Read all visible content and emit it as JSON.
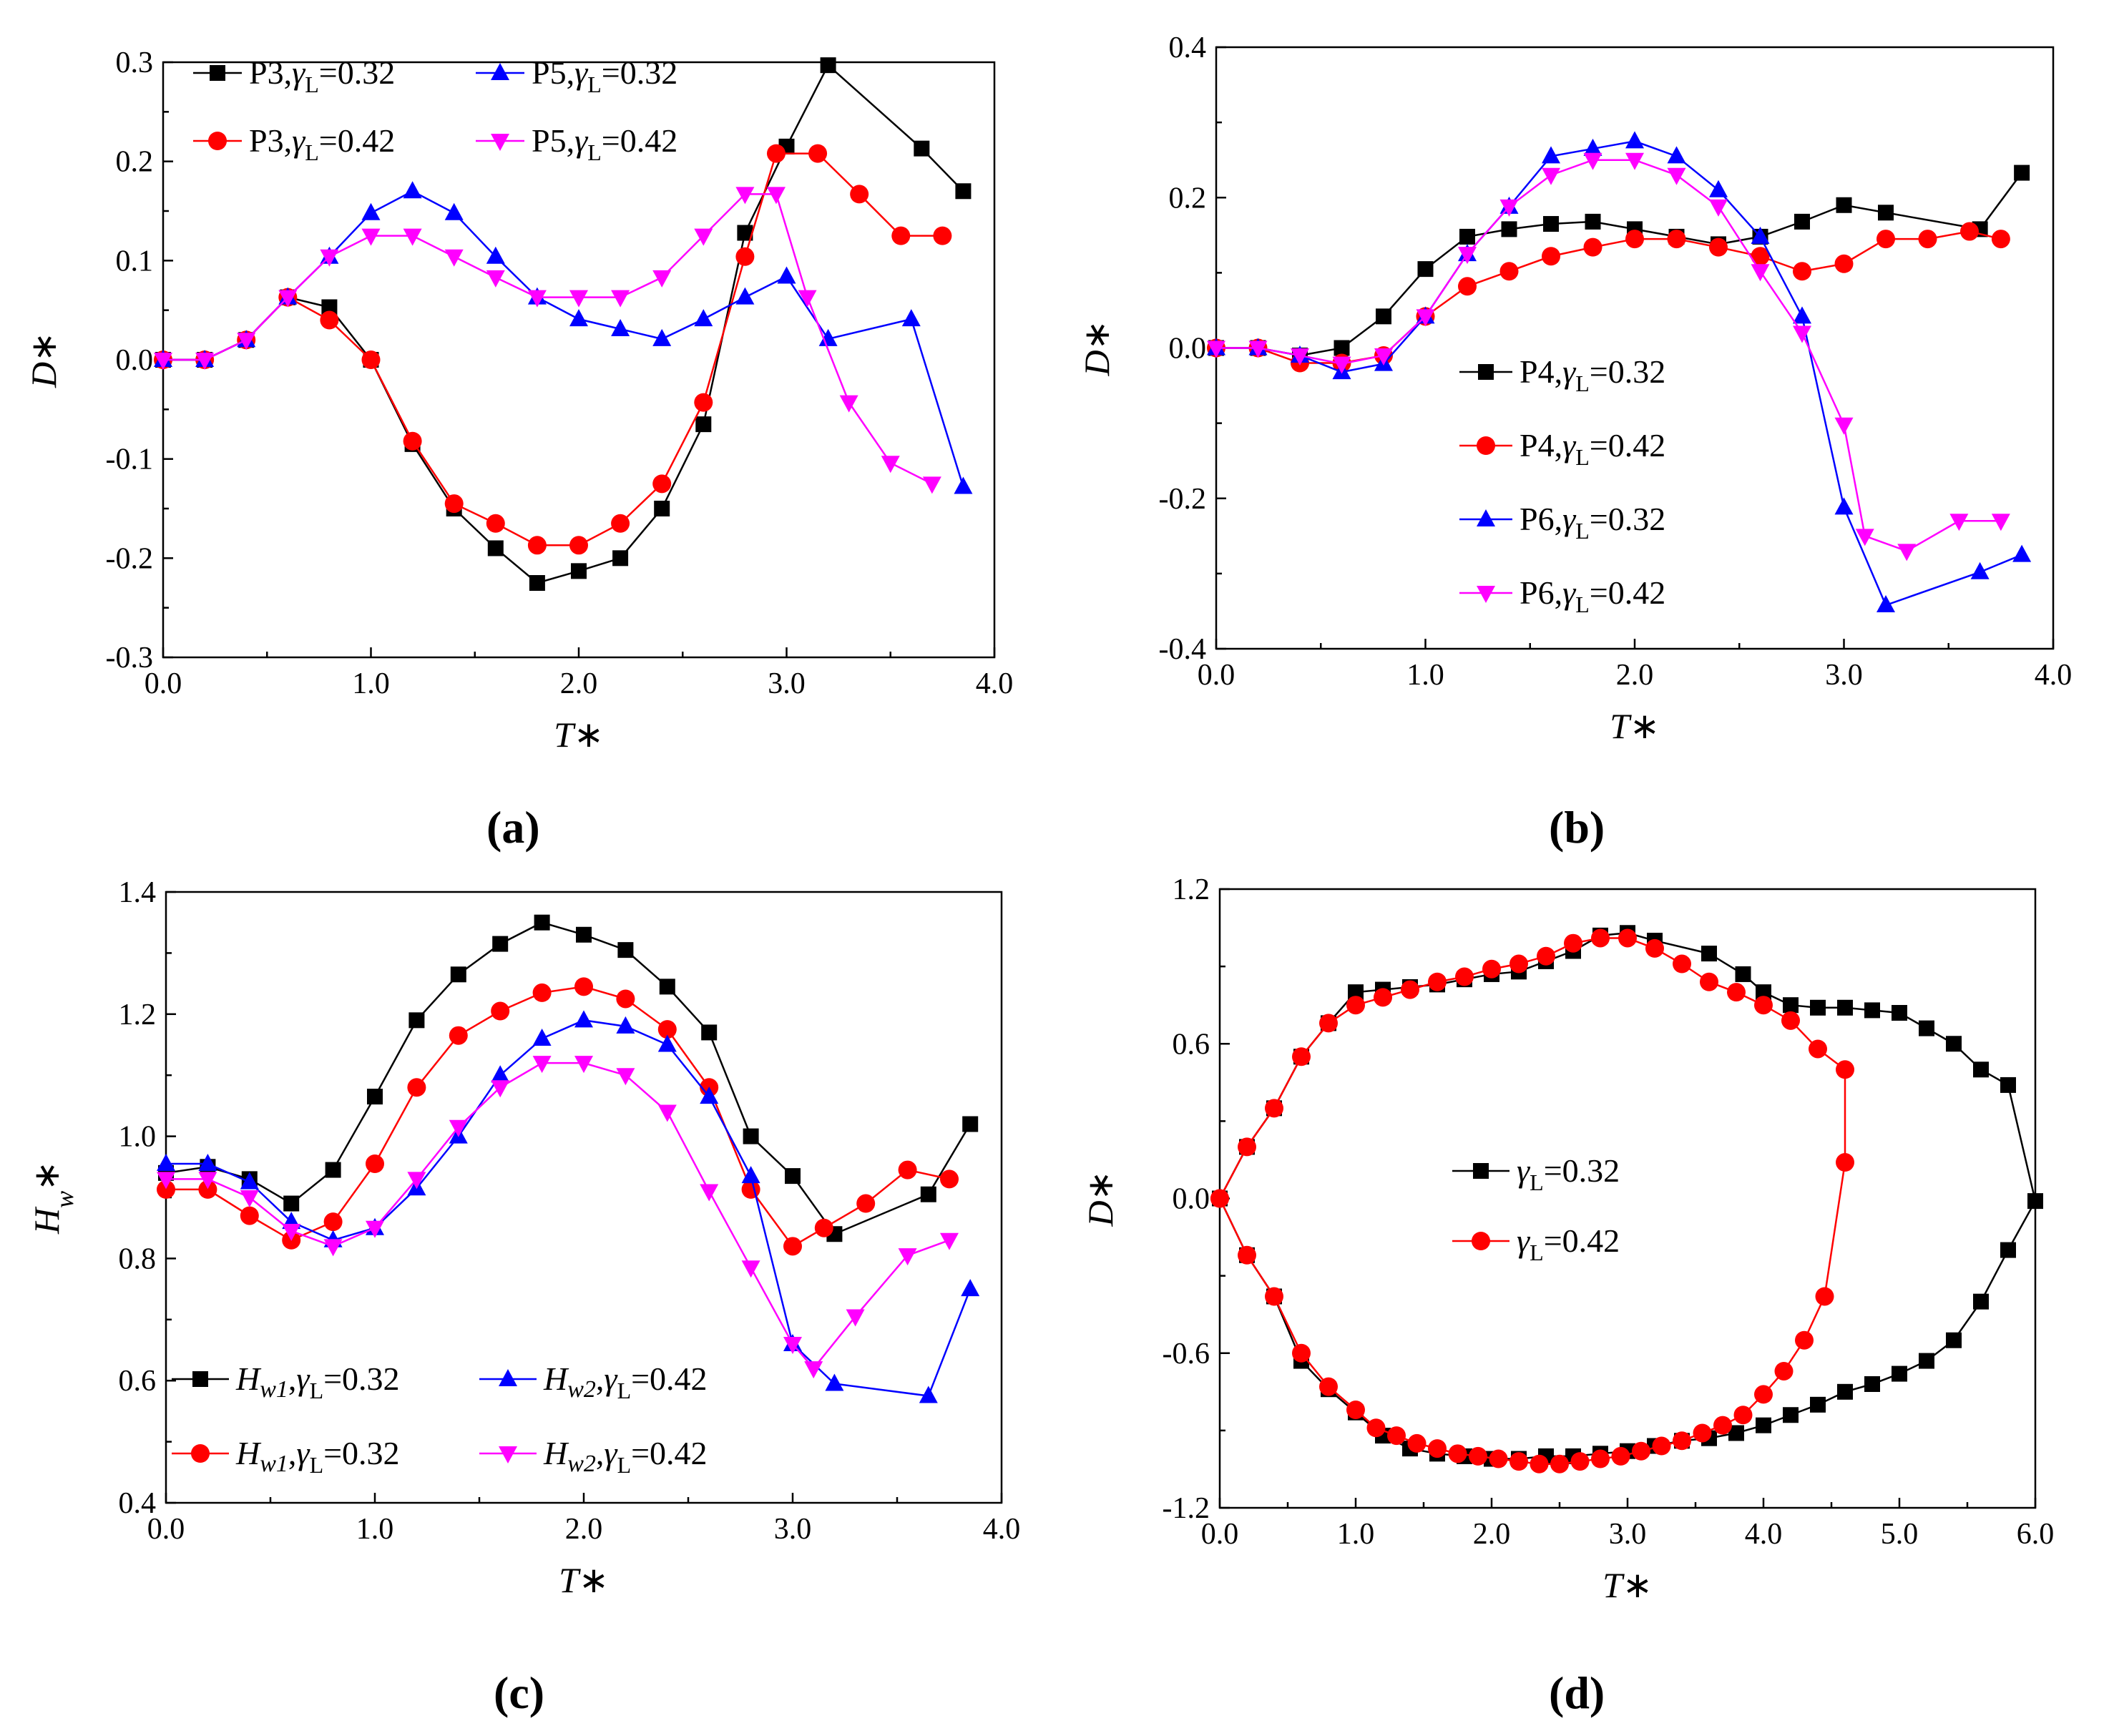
{
  "figure": {
    "panel_labels": [
      "(a)",
      "(b)",
      "(c)",
      "(d)"
    ]
  },
  "chart_data": [
    {
      "id": "a",
      "type": "line",
      "xlabel": "T*",
      "ylabel": "D*",
      "xlim": [
        0,
        4.0
      ],
      "ylim": [
        -0.3,
        0.3
      ],
      "xticks": [
        0,
        1,
        2,
        3,
        4
      ],
      "xtick_labels": [
        "0.0",
        "1.0",
        "2.0",
        "3.0",
        "4.0"
      ],
      "yticks": [
        -0.3,
        -0.2,
        -0.1,
        0,
        0.1,
        0.2,
        0.3
      ],
      "ytick_labels": [
        "-0.3",
        "-0.2",
        "-0.1",
        "0.0",
        "0.1",
        "0.2",
        "0.3"
      ],
      "legend_position": "top",
      "series": [
        {
          "name": "P3,γL=0.32",
          "label_main": "P3,",
          "gamma": "γ",
          "sub": "L",
          "val": "=0.32",
          "color": "#000000",
          "marker": "square",
          "x": [
            0,
            0.2,
            0.4,
            0.6,
            0.8,
            1.0,
            1.2,
            1.4,
            1.6,
            1.8,
            2.0,
            2.2,
            2.4,
            2.6,
            2.8,
            3.0,
            3.2,
            3.65,
            3.85
          ],
          "y": [
            0,
            0,
            0.02,
            0.063,
            0.053,
            0,
            -0.085,
            -0.15,
            -0.19,
            -0.225,
            -0.213,
            -0.2,
            -0.15,
            -0.065,
            0.128,
            0.215,
            0.297,
            0.213,
            0.17
          ]
        },
        {
          "name": "P3,γL=0.42",
          "label_main": "P3,",
          "gamma": "γ",
          "sub": "L",
          "val": "=0.42",
          "color": "#ff0000",
          "marker": "circle",
          "x": [
            0,
            0.2,
            0.4,
            0.6,
            0.8,
            1.0,
            1.2,
            1.4,
            1.6,
            1.8,
            2.0,
            2.2,
            2.4,
            2.6,
            2.8,
            2.95,
            3.15,
            3.35,
            3.55,
            3.75
          ],
          "y": [
            0,
            0,
            0.02,
            0.063,
            0.04,
            0,
            -0.082,
            -0.145,
            -0.165,
            -0.187,
            -0.187,
            -0.165,
            -0.125,
            -0.043,
            0.104,
            0.208,
            0.208,
            0.167,
            0.125,
            0.125
          ]
        },
        {
          "name": "P5,γL=0.32",
          "label_main": "P5,",
          "gamma": "γ",
          "sub": "L",
          "val": "=0.32",
          "color": "#0000ff",
          "marker": "triangle",
          "x": [
            0,
            0.2,
            0.4,
            0.6,
            0.8,
            1.0,
            1.2,
            1.4,
            1.6,
            1.8,
            2.0,
            2.2,
            2.4,
            2.6,
            2.8,
            3.0,
            3.2,
            3.6,
            3.85
          ],
          "y": [
            0,
            0,
            0.02,
            0.063,
            0.104,
            0.148,
            0.17,
            0.148,
            0.104,
            0.063,
            0.041,
            0.031,
            0.021,
            0.041,
            0.063,
            0.084,
            0.021,
            0.041,
            -0.128
          ]
        },
        {
          "name": "P5,γL=0.42",
          "label_main": "P5,",
          "gamma": "γ",
          "sub": "L",
          "val": "=0.42",
          "color": "#ff00ff",
          "marker": "triangle-down",
          "x": [
            0,
            0.2,
            0.4,
            0.6,
            0.8,
            1.0,
            1.2,
            1.4,
            1.6,
            1.8,
            2.0,
            2.2,
            2.4,
            2.6,
            2.8,
            2.95,
            3.1,
            3.3,
            3.5,
            3.7
          ],
          "y": [
            0,
            0,
            0.02,
            0.063,
            0.104,
            0.125,
            0.125,
            0.104,
            0.083,
            0.063,
            0.063,
            0.063,
            0.083,
            0.125,
            0.167,
            0.167,
            0.063,
            -0.043,
            -0.104,
            -0.125
          ]
        }
      ]
    },
    {
      "id": "b",
      "type": "line",
      "xlabel": "T*",
      "ylabel": "D*",
      "xlim": [
        0,
        4.0
      ],
      "ylim": [
        -0.4,
        0.4
      ],
      "xticks": [
        0,
        1,
        2,
        3,
        4
      ],
      "xtick_labels": [
        "0.0",
        "1.0",
        "2.0",
        "3.0",
        "4.0"
      ],
      "yticks": [
        -0.4,
        -0.2,
        0,
        0.2,
        0.4
      ],
      "ytick_labels": [
        "-0.4",
        "-0.2",
        "0.0",
        "0.2",
        "0.4"
      ],
      "legend_position": "center-right",
      "series": [
        {
          "name": "P4,γL=0.32",
          "label_main": "P4,",
          "gamma": "γ",
          "sub": "L",
          "val": "=0.32",
          "color": "#000000",
          "marker": "square",
          "x": [
            0,
            0.2,
            0.4,
            0.6,
            0.8,
            1.0,
            1.2,
            1.4,
            1.6,
            1.8,
            2.0,
            2.2,
            2.4,
            2.6,
            2.8,
            3.0,
            3.2,
            3.65,
            3.85
          ],
          "y": [
            0,
            0,
            -0.01,
            0,
            0.042,
            0.105,
            0.148,
            0.158,
            0.165,
            0.168,
            0.158,
            0.148,
            0.138,
            0.148,
            0.168,
            0.19,
            0.18,
            0.158,
            0.233
          ]
        },
        {
          "name": "P4,γL=0.42",
          "label_main": "P4,",
          "gamma": "γ",
          "sub": "L",
          "val": "=0.42",
          "color": "#ff0000",
          "marker": "circle",
          "x": [
            0,
            0.2,
            0.4,
            0.6,
            0.8,
            1.0,
            1.2,
            1.4,
            1.6,
            1.8,
            2.0,
            2.2,
            2.4,
            2.6,
            2.8,
            3.0,
            3.2,
            3.4,
            3.6,
            3.75
          ],
          "y": [
            0,
            0,
            -0.02,
            -0.02,
            -0.01,
            0.042,
            0.082,
            0.102,
            0.122,
            0.134,
            0.145,
            0.145,
            0.134,
            0.122,
            0.102,
            0.112,
            0.145,
            0.145,
            0.155,
            0.145
          ]
        },
        {
          "name": "P6,γL=0.32",
          "label_main": "P6,",
          "gamma": "γ",
          "sub": "L",
          "val": "=0.32",
          "color": "#0000ff",
          "marker": "triangle",
          "x": [
            0,
            0.2,
            0.4,
            0.6,
            0.8,
            1.0,
            1.2,
            1.4,
            1.6,
            1.8,
            2.0,
            2.2,
            2.4,
            2.6,
            2.8,
            3.0,
            3.2,
            3.65,
            3.85
          ],
          "y": [
            0,
            0,
            -0.01,
            -0.032,
            -0.021,
            0.042,
            0.125,
            0.188,
            0.255,
            0.265,
            0.275,
            0.255,
            0.21,
            0.148,
            0.042,
            -0.212,
            -0.342,
            -0.298,
            -0.275
          ]
        },
        {
          "name": "P6,γL=0.42",
          "label_main": "P6,",
          "gamma": "γ",
          "sub": "L",
          "val": "=0.42",
          "color": "#ff00ff",
          "marker": "triangle-down",
          "x": [
            0,
            0.2,
            0.4,
            0.6,
            0.8,
            1.0,
            1.2,
            1.4,
            1.6,
            1.8,
            2.0,
            2.2,
            2.4,
            2.6,
            2.8,
            3.0,
            3.1,
            3.3,
            3.55,
            3.75
          ],
          "y": [
            0,
            0,
            -0.01,
            -0.021,
            -0.01,
            0.042,
            0.125,
            0.188,
            0.23,
            0.25,
            0.25,
            0.23,
            0.188,
            0.102,
            0.02,
            -0.102,
            -0.25,
            -0.27,
            -0.23,
            -0.23
          ]
        }
      ]
    },
    {
      "id": "c",
      "type": "line",
      "xlabel": "T*",
      "ylabel": "Hw*",
      "xlim": [
        0,
        4.0
      ],
      "ylim": [
        0.4,
        1.4
      ],
      "xticks": [
        0,
        1,
        2,
        3,
        4
      ],
      "xtick_labels": [
        "0.0",
        "1.0",
        "2.0",
        "3.0",
        "4.0"
      ],
      "yticks": [
        0.4,
        0.6,
        0.8,
        1.0,
        1.2,
        1.4
      ],
      "ytick_labels": [
        "0.4",
        "0.6",
        "0.8",
        "1.0",
        "1.2",
        "1.4"
      ],
      "legend_position": "bottom",
      "series": [
        {
          "name": "Hw1,γL=0.32",
          "label_main": "H",
          "label_sub": "w1",
          "comma": ",",
          "gamma": "γ",
          "sub": "L",
          "val": "=0.32",
          "color": "#000000",
          "marker": "square",
          "x": [
            0,
            0.2,
            0.4,
            0.6,
            0.8,
            1.0,
            1.2,
            1.4,
            1.6,
            1.8,
            2.0,
            2.2,
            2.4,
            2.6,
            2.8,
            3.0,
            3.2,
            3.65,
            3.85
          ],
          "y": [
            0.94,
            0.95,
            0.93,
            0.89,
            0.945,
            1.065,
            1.19,
            1.265,
            1.315,
            1.35,
            1.33,
            1.305,
            1.245,
            1.17,
            1.0,
            0.935,
            0.84,
            0.905,
            1.02
          ]
        },
        {
          "name": "Hw1,γL=0.32",
          "label_main": "H",
          "label_sub": "w1",
          "comma": ",",
          "gamma": "γ",
          "sub": "L",
          "val": "=0.32",
          "color": "#ff0000",
          "marker": "circle",
          "x": [
            0,
            0.2,
            0.4,
            0.6,
            0.8,
            1.0,
            1.2,
            1.4,
            1.6,
            1.8,
            2.0,
            2.2,
            2.4,
            2.6,
            2.8,
            3.0,
            3.15,
            3.35,
            3.55,
            3.75
          ],
          "y": [
            0.913,
            0.913,
            0.87,
            0.83,
            0.86,
            0.955,
            1.08,
            1.165,
            1.205,
            1.235,
            1.245,
            1.225,
            1.175,
            1.08,
            0.913,
            0.82,
            0.85,
            0.89,
            0.945,
            0.93
          ]
        },
        {
          "name": "Hw2,γL=0.42",
          "label_main": "H",
          "label_sub": "w2",
          "comma": ",",
          "gamma": "γ",
          "sub": "L",
          "val": "=0.42",
          "color": "#0000ff",
          "marker": "triangle",
          "x": [
            0,
            0.2,
            0.4,
            0.6,
            0.8,
            1.0,
            1.2,
            1.4,
            1.6,
            1.8,
            2.0,
            2.2,
            2.4,
            2.6,
            2.8,
            3.0,
            3.2,
            3.65,
            3.85
          ],
          "y": [
            0.955,
            0.955,
            0.925,
            0.86,
            0.83,
            0.85,
            0.915,
            1.0,
            1.1,
            1.16,
            1.19,
            1.18,
            1.15,
            1.065,
            0.935,
            0.66,
            0.595,
            0.575,
            0.75
          ]
        },
        {
          "name": "Hw2,γL=0.42",
          "label_main": "H",
          "label_sub": "w2",
          "comma": ",",
          "gamma": "γ",
          "sub": "L",
          "val": "=0.42",
          "color": "#ff00ff",
          "marker": "triangle-down",
          "x": [
            0,
            0.2,
            0.4,
            0.6,
            0.8,
            1.0,
            1.2,
            1.4,
            1.6,
            1.8,
            2.0,
            2.2,
            2.4,
            2.6,
            2.8,
            3.0,
            3.1,
            3.3,
            3.55,
            3.75
          ],
          "y": [
            0.93,
            0.93,
            0.9,
            0.845,
            0.82,
            0.85,
            0.93,
            1.015,
            1.08,
            1.12,
            1.12,
            1.1,
            1.04,
            0.91,
            0.785,
            0.66,
            0.62,
            0.705,
            0.805,
            0.83
          ]
        }
      ]
    },
    {
      "id": "d",
      "type": "line",
      "xlabel": "T*",
      "ylabel": "D*",
      "xlim": [
        0,
        6.0
      ],
      "ylim": [
        -1.2,
        1.2
      ],
      "xticks": [
        0,
        1,
        2,
        3,
        4,
        5,
        6
      ],
      "xtick_labels": [
        "0.0",
        "1.0",
        "2.0",
        "3.0",
        "4.0",
        "5.0",
        "6.0"
      ],
      "yticks": [
        -1.2,
        -0.6,
        0,
        0.6,
        1.2
      ],
      "ytick_labels": [
        "-1.2",
        "-0.6",
        "0.0",
        "0.6",
        "1.2"
      ],
      "legend_position": "center",
      "series": [
        {
          "name": "γL=0.32",
          "gamma": "γ",
          "sub": "L",
          "val": "=0.32",
          "color": "#000000",
          "marker": "square",
          "x": [
            0,
            0.2,
            0.4,
            0.6,
            0.8,
            1.0,
            1.2,
            1.4,
            1.6,
            1.8,
            2.0,
            2.2,
            2.4,
            2.6,
            2.8,
            3.0,
            3.2,
            3.6,
            3.85,
            4.0,
            4.2,
            4.4,
            4.6,
            4.8,
            5.0,
            5.2,
            5.4,
            5.6,
            5.8,
            6.0,
            5.8,
            5.6,
            5.4,
            5.2,
            5.0,
            4.8,
            4.6,
            4.4,
            4.2,
            4.0,
            3.8,
            3.6,
            3.4,
            3.2,
            3.0,
            2.8,
            2.6,
            2.4,
            2.2,
            2.0,
            1.8,
            1.6,
            1.4,
            1.2,
            1.0,
            0.8,
            0.6,
            0.4,
            0.2,
            0
          ],
          "y": [
            0,
            0.2,
            0.35,
            0.55,
            0.68,
            0.8,
            0.81,
            0.82,
            0.83,
            0.85,
            0.87,
            0.88,
            0.92,
            0.96,
            1.02,
            1.03,
            1.0,
            0.95,
            0.87,
            0.8,
            0.75,
            0.74,
            0.74,
            0.73,
            0.72,
            0.66,
            0.6,
            0.5,
            0.44,
            -0.01,
            -0.2,
            -0.4,
            -0.55,
            -0.63,
            -0.68,
            -0.72,
            -0.75,
            -0.8,
            -0.84,
            -0.88,
            -0.91,
            -0.93,
            -0.94,
            -0.96,
            -0.98,
            -0.99,
            -1.0,
            -1.0,
            -1.01,
            -1.01,
            -1.0,
            -0.99,
            -0.97,
            -0.92,
            -0.83,
            -0.74,
            -0.63,
            -0.38,
            -0.22,
            0
          ]
        },
        {
          "name": "γL=0.42",
          "gamma": "γ",
          "sub": "L",
          "val": "=0.42",
          "color": "#ff0000",
          "marker": "circle",
          "x": [
            0,
            0.2,
            0.4,
            0.6,
            0.8,
            1.0,
            1.2,
            1.4,
            1.6,
            1.8,
            2.0,
            2.2,
            2.4,
            2.6,
            2.8,
            3.0,
            3.2,
            3.4,
            3.6,
            3.8,
            4.0,
            4.2,
            4.4,
            4.6,
            4.6,
            4.45,
            4.3,
            4.15,
            4.0,
            3.85,
            3.7,
            3.55,
            3.4,
            3.25,
            3.1,
            2.95,
            2.8,
            2.65,
            2.5,
            2.35,
            2.2,
            2.05,
            1.9,
            1.75,
            1.6,
            1.45,
            1.3,
            1.15,
            1.0,
            0.8,
            0.6,
            0.4,
            0.2,
            0
          ],
          "y": [
            0,
            0.2,
            0.35,
            0.55,
            0.68,
            0.75,
            0.78,
            0.81,
            0.84,
            0.86,
            0.89,
            0.91,
            0.94,
            0.99,
            1.01,
            1.01,
            0.97,
            0.91,
            0.84,
            0.8,
            0.75,
            0.69,
            0.58,
            0.5,
            0.14,
            -0.38,
            -0.55,
            -0.67,
            -0.76,
            -0.84,
            -0.88,
            -0.91,
            -0.94,
            -0.96,
            -0.98,
            -1.0,
            -1.01,
            -1.02,
            -1.03,
            -1.03,
            -1.02,
            -1.01,
            -1.0,
            -0.99,
            -0.97,
            -0.95,
            -0.92,
            -0.89,
            -0.82,
            -0.73,
            -0.6,
            -0.38,
            -0.22,
            0
          ]
        }
      ]
    }
  ]
}
